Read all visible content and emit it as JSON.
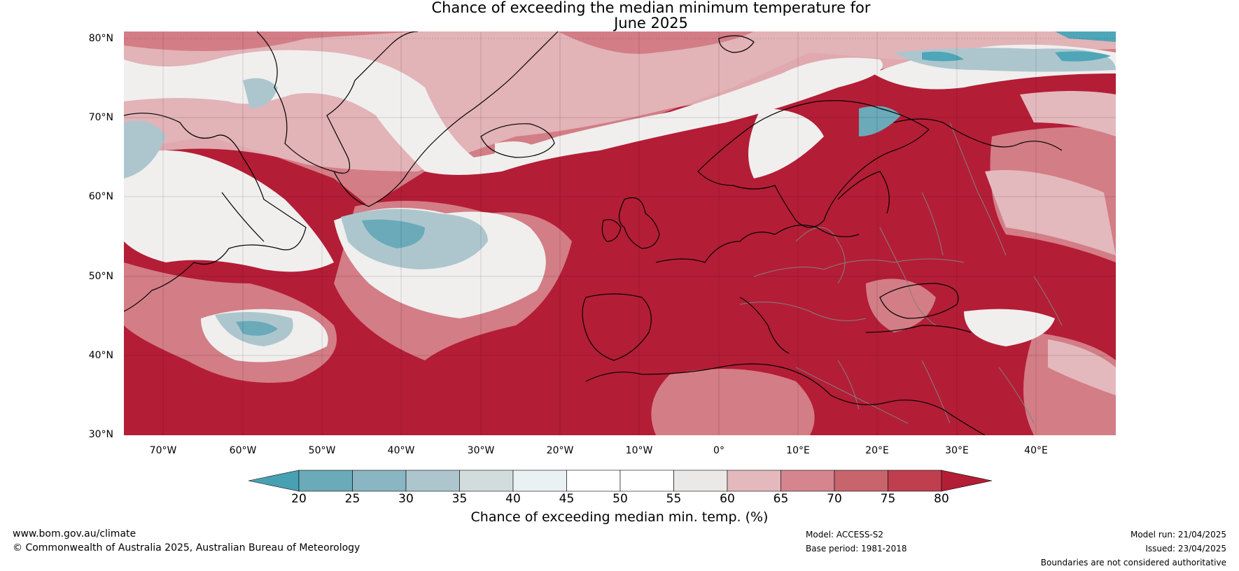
{
  "title_line1": "Chance of exceeding the median minimum temperature for",
  "title_line2": "June 2025",
  "map": {
    "region": "North Atlantic and Europe",
    "lat_labels": [
      "80°N",
      "70°N",
      "60°N",
      "50°N",
      "40°N",
      "30°N"
    ],
    "lon_labels": [
      "70°W",
      "60°W",
      "50°W",
      "40°W",
      "30°W",
      "20°W",
      "10°W",
      "0°",
      "10°E",
      "20°E",
      "30°E",
      "40°E"
    ],
    "lat_range": [
      30,
      81
    ],
    "lon_range": [
      -75,
      50
    ],
    "gridlines": true,
    "colors": {
      "very_high": "#b41d36",
      "high": "#c54e5c",
      "mid_high": "#d37d86",
      "near_median": "#e9e9e9",
      "low": "#aec6ce",
      "very_low": "#4ea6b8",
      "coast": "#000000",
      "border": "#808080"
    }
  },
  "colorbar": {
    "ticks": [
      "20",
      "25",
      "30",
      "35",
      "40",
      "45",
      "50",
      "55",
      "60",
      "65",
      "70",
      "75",
      "80"
    ],
    "colors": [
      "#48a1b3",
      "#6aaab9",
      "#8ab5c3",
      "#adc6ce",
      "#d3dcdd",
      "#eaf1f3",
      "#ffffff",
      "#ffffff",
      "#ebe9e7",
      "#e3b9bd",
      "#d4858e",
      "#c7646c",
      "#bf3f4f",
      "#b41d36"
    ],
    "label": "Chance of exceeding median min. temp. (%)"
  },
  "footer": {
    "site": "www.bom.gov.au/climate",
    "copyright": "© Commonwealth of Australia 2025, Australian Bureau of Meteorology",
    "model": "Model: ACCESS-S2",
    "base_period": "Base period: 1981-2018",
    "model_run": "Model run: 21/04/2025",
    "issued": "Issued: 23/04/2025",
    "disclaimer": "Boundaries are not considered authoritative"
  }
}
